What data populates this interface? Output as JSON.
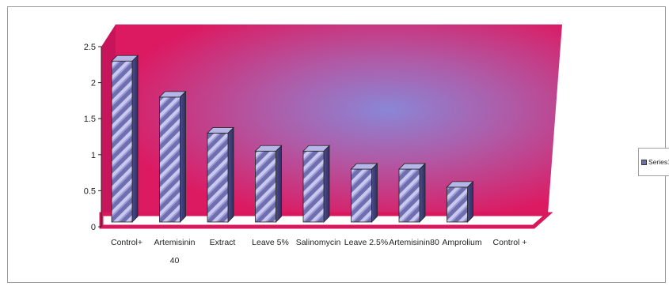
{
  "chart_data": {
    "type": "bar",
    "style": "3d-cylinder",
    "categories": [
      "Control+",
      "Artemisinin 40",
      "Extract",
      "Leave 5%",
      "Salinomycin",
      "Leave 2.5%",
      "Artemisinin80",
      "Amprolium",
      "Control +"
    ],
    "series": [
      {
        "name": "Series1",
        "values": [
          2.3,
          1.8,
          1.3,
          1.05,
          1.05,
          0.8,
          0.8,
          0.55,
          0
        ]
      }
    ],
    "yticks": [
      "0",
      "0.5",
      "1",
      "1.5",
      "2",
      "2.5"
    ],
    "ylim": [
      0,
      2.5
    ],
    "grid": false,
    "legend_position": "right",
    "colors": {
      "wall": "#dc1a62",
      "wall_glow": "#8a86d6",
      "floor": "#ffffff",
      "floor_edge": "#d8175c",
      "bar": "#6f6fb0",
      "bar_light": "#c9c8ee"
    }
  }
}
